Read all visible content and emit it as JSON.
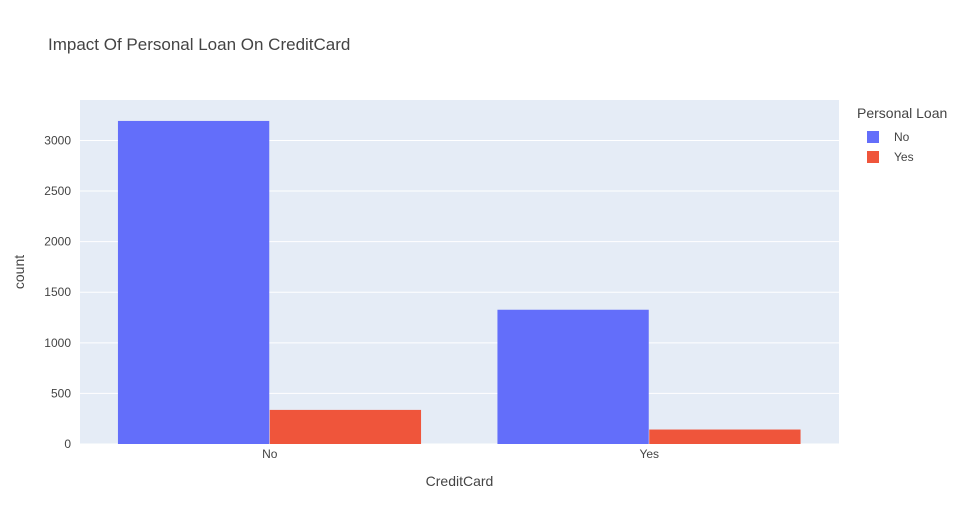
{
  "chart_data": {
    "type": "bar",
    "title": "Impact Of Personal Loan On CreditCard",
    "xlabel": "CreditCard",
    "ylabel": "count",
    "categories": [
      "No",
      "Yes"
    ],
    "ylim": [
      0,
      3400
    ],
    "yticks": [
      0,
      500,
      1000,
      1500,
      2000,
      2500,
      3000
    ],
    "grid": true,
    "legend": {
      "title": "Personal Loan",
      "placement": "top-right"
    },
    "series": [
      {
        "name": "No",
        "color": "#636efa",
        "values": [
          3193,
          1327
        ]
      },
      {
        "name": "Yes",
        "color": "#ef553b",
        "values": [
          337,
          143
        ]
      }
    ]
  }
}
